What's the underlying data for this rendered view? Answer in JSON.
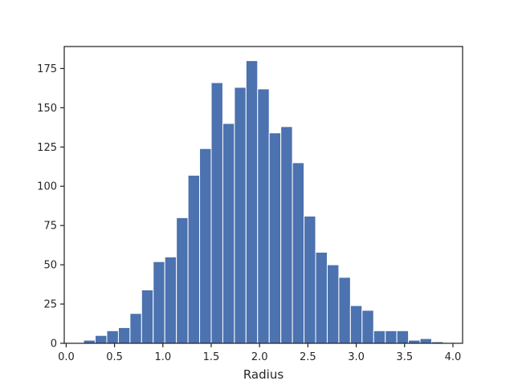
{
  "chart_data": {
    "type": "bar",
    "title": "",
    "xlabel": "Radius",
    "ylabel": "",
    "xlim": [
      -0.02,
      4.1
    ],
    "ylim": [
      0,
      189
    ],
    "grid": false,
    "bar_color": "#4c72b0",
    "bin_edges": [
      0.18,
      0.3,
      0.42,
      0.54,
      0.66,
      0.78,
      0.9,
      1.02,
      1.14,
      1.26,
      1.38,
      1.5,
      1.62,
      1.74,
      1.86,
      1.98,
      2.1,
      2.22,
      2.34,
      2.46,
      2.58,
      2.7,
      2.82,
      2.94,
      3.06,
      3.18,
      3.3,
      3.42,
      3.54,
      3.66,
      3.78,
      3.9
    ],
    "values": [
      2,
      5,
      8,
      10,
      19,
      34,
      52,
      55,
      80,
      107,
      124,
      166,
      140,
      163,
      180,
      162,
      134,
      138,
      115,
      81,
      58,
      50,
      42,
      24,
      21,
      8,
      8,
      8,
      2,
      3,
      1
    ],
    "x_ticks": [
      0.0,
      0.5,
      1.0,
      1.5,
      2.0,
      2.5,
      3.0,
      3.5,
      4.0
    ],
    "x_tick_labels": [
      "0.0",
      "0.5",
      "1.0",
      "1.5",
      "2.0",
      "2.5",
      "3.0",
      "3.5",
      "4.0"
    ],
    "y_ticks": [
      0,
      25,
      50,
      75,
      100,
      125,
      150,
      175
    ],
    "y_tick_labels": [
      "0",
      "25",
      "50",
      "75",
      "100",
      "125",
      "150",
      "175"
    ]
  }
}
